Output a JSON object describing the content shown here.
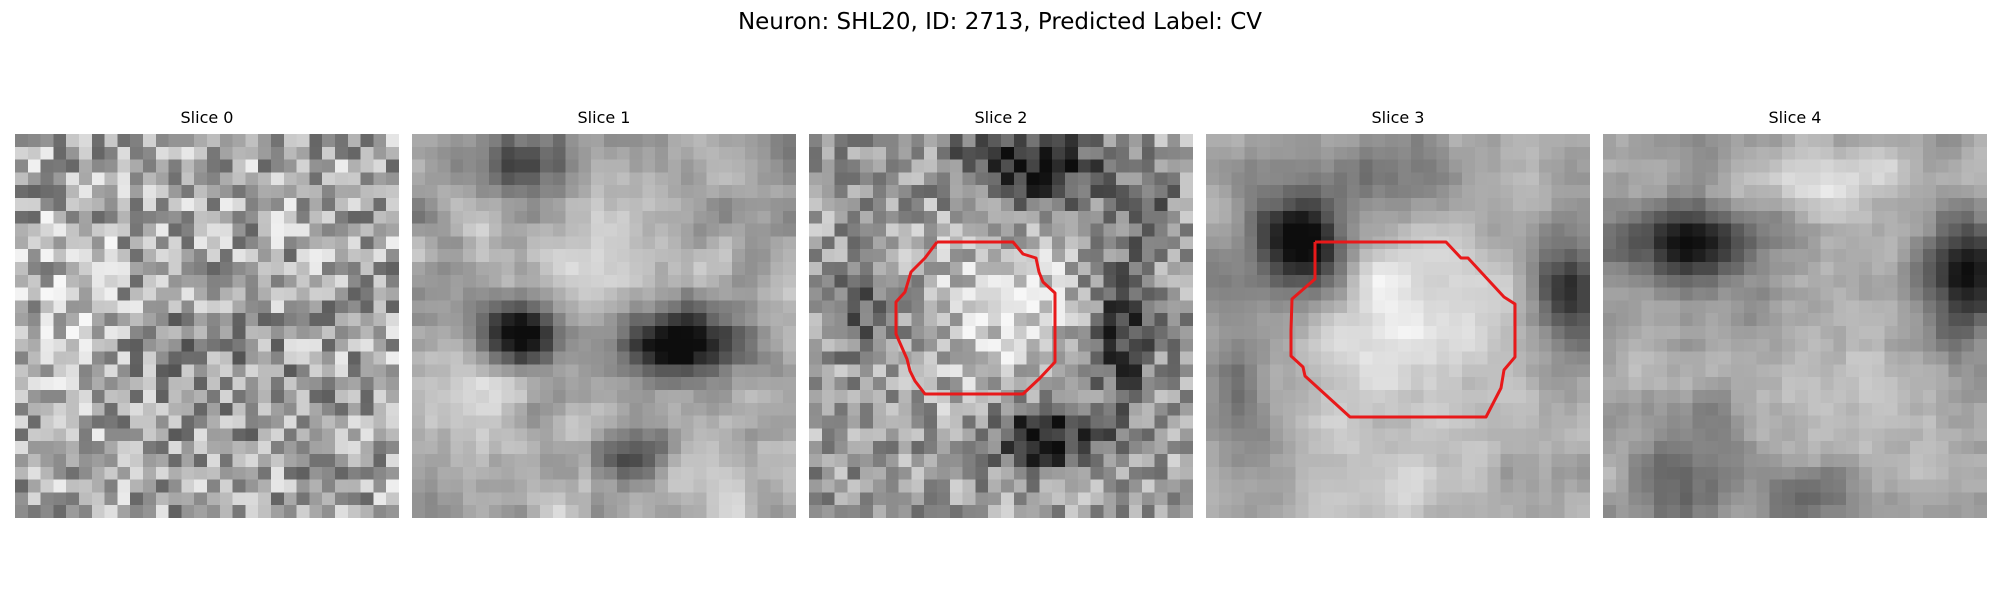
{
  "figure": {
    "suptitle": "Neuron: SHL20, ID: 2713, Predicted Label: CV"
  },
  "panels": [
    {
      "title": "Slice 0",
      "has_contour": false,
      "character": "noise"
    },
    {
      "title": "Slice 1",
      "has_contour": false,
      "character": "two-dark-blobs"
    },
    {
      "title": "Slice 2",
      "has_contour": true,
      "character": "bright-cell-with-dark-rim"
    },
    {
      "title": "Slice 3",
      "has_contour": true,
      "character": "bright-cell-with-dark-rim"
    },
    {
      "title": "Slice 4",
      "has_contour": false,
      "character": "blurred-texture"
    }
  ],
  "colors": {
    "contour": "#e8191a",
    "colormap": "gray"
  },
  "image_grid": "30x30 grayscale"
}
